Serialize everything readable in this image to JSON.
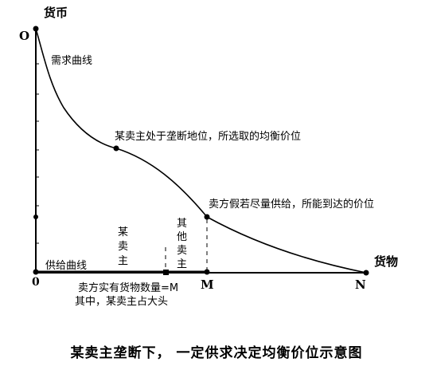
{
  "diagram": {
    "y_axis_label": "货币",
    "origin_top_label": "O",
    "origin_label": "0",
    "x_axis_label": "货物",
    "point_m_label": "M",
    "point_n_label": "N",
    "demand_curve_label": "需求曲线",
    "supply_curve_label": "供给曲线",
    "monopoly_point_label": "某卖主处于垄断地位，所选取的均衡价位",
    "sellers_point_label": "卖方假若尽量供给，所能到达的价位",
    "segment_major_seller": [
      "某",
      "卖",
      "主"
    ],
    "segment_other_sellers": [
      "其",
      "他",
      "卖",
      "主"
    ],
    "note_lines": [
      "卖方实有货物数量=M",
      "其中，某卖主占大头"
    ],
    "colors": {
      "line": "#000000",
      "background": "#ffffff"
    }
  },
  "caption": "某卖主垄断下，  一定供求决定均衡价位示意图"
}
